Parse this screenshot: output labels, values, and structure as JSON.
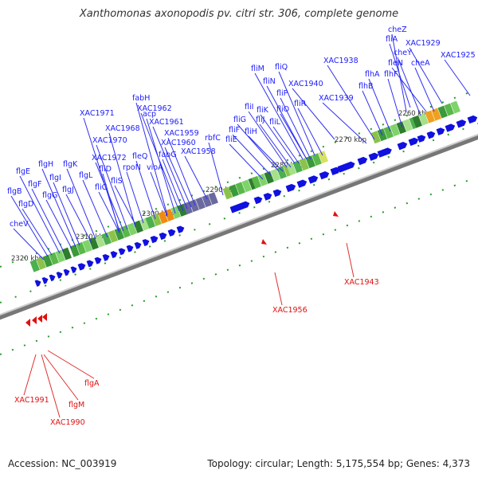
{
  "title": "Xanthomonas axonopodis pv. citri str. 306, complete genome",
  "accession": "Accession: NC_003919",
  "summary": "Topology: circular; Length: 5,175,554 bp; Genes: 4,373",
  "colors": {
    "forward_label": "#1a1aff",
    "reverse_label": "#e01010",
    "gene_arrow": "#1010e0",
    "backbone": "#999999"
  },
  "ticks": [
    "2260 kbp",
    "2270 kbp",
    "2280 kbp",
    "2290 kbp",
    "2300 kbp",
    "2310 kbp",
    "2320 kbp"
  ],
  "labels_forward": [
    "cheZ",
    "fliA",
    "XAC1929",
    "cheY",
    "XAC1925",
    "fleN",
    "cheA",
    "XAC1938",
    "flhA",
    "flhF",
    "fliM",
    "fliQ",
    "fliN",
    "XAC1940",
    "flhB",
    "fliP",
    "fliR",
    "XAC1939",
    "fliI",
    "fliK",
    "fliO",
    "fliG",
    "fliJ",
    "fliL",
    "fliF",
    "fliH",
    "fliE",
    "fabH",
    "XAC1962",
    "XAC1971",
    "XAC1961",
    "acp",
    "XAC1968",
    "XAC1959",
    "XAC1960",
    "rbfC",
    "XAC1970",
    "fabG",
    "XAC1958",
    "XAC1972",
    "fleQ",
    "fliD",
    "rpoN",
    "vioA",
    "flgH",
    "flgE",
    "flgK",
    "fliS",
    "flgI",
    "flgF",
    "flgL",
    "flgB",
    "flgG",
    "flgJ",
    "fliC",
    "flgD",
    "cheV"
  ],
  "labels_reverse": [
    "XAC1943",
    "XAC1956",
    "flgA",
    "XAC1991",
    "flgM",
    "XAC1990"
  ]
}
